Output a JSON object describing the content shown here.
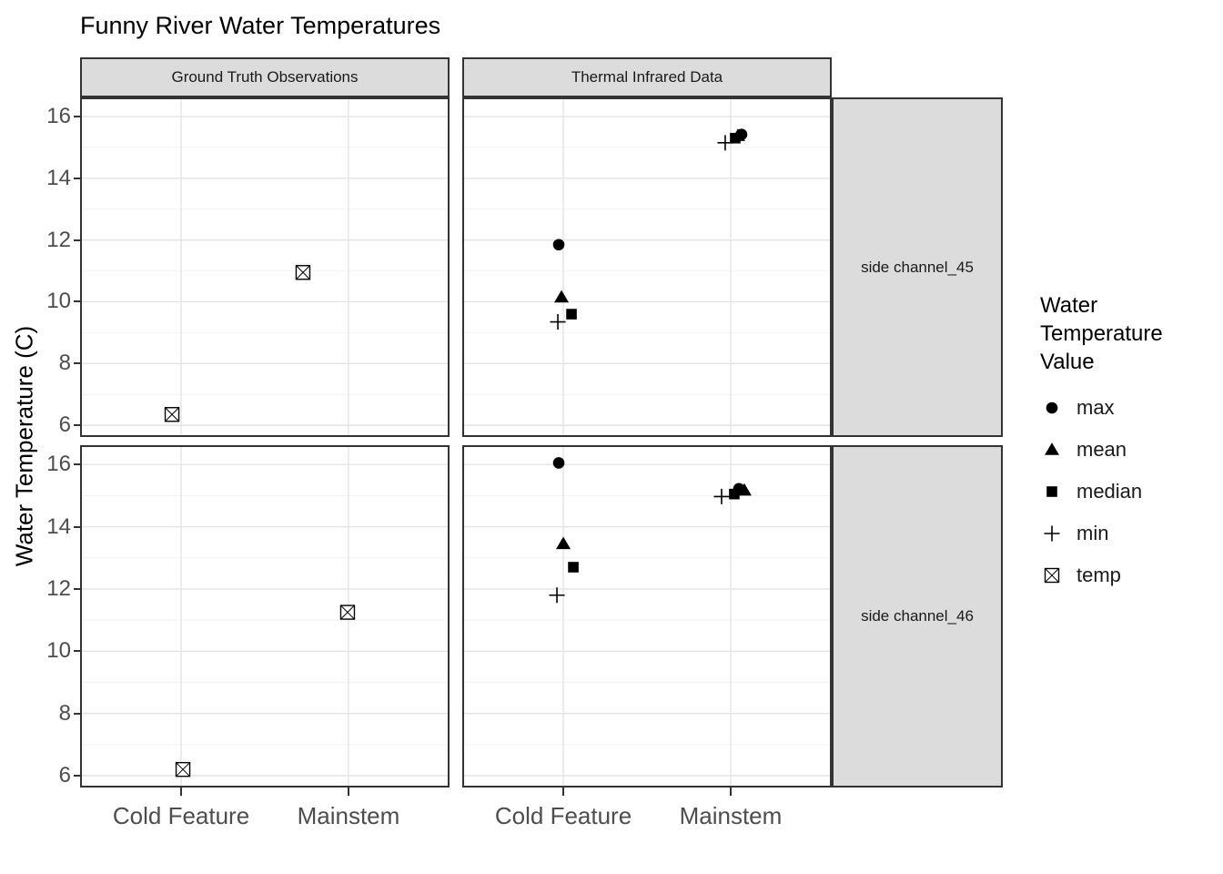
{
  "title": "Funny River Water Temperatures",
  "colors": {
    "marker": "#000000",
    "strip_fill": "#DCDCDC",
    "panel_border": "#333333",
    "grid_major": "#E4E4E4",
    "grid_minor": "#F2F2F2",
    "axis_text": "#4D4D4D",
    "title_text": "#000000"
  },
  "chart_data": {
    "type": "scatter",
    "title": "Funny River Water Temperatures",
    "xlabel": "",
    "ylabel": "Water Temperature (C)",
    "facet_cols": [
      "Ground Truth Observations",
      "Thermal Infrared Data"
    ],
    "facet_rows": [
      "side channel_45",
      "side channel_46"
    ],
    "x_categories": [
      "Cold Feature",
      "Mainstem"
    ],
    "yticks": [
      6,
      8,
      10,
      12,
      14,
      16
    ],
    "yticks_minor": [
      7,
      9,
      11,
      13,
      15
    ],
    "ylim": [
      5.62,
      16.62
    ],
    "grid": "major-and-minor, light grey on white",
    "legend": {
      "title": "Water Temperature Value",
      "title_lines": [
        "Water",
        "Temperature",
        "Value"
      ],
      "position": "right",
      "items": [
        {
          "label": "max",
          "marker": "filled-circle"
        },
        {
          "label": "mean",
          "marker": "filled-triangle"
        },
        {
          "label": "median",
          "marker": "filled-square"
        },
        {
          "label": "min",
          "marker": "plus"
        },
        {
          "label": "temp",
          "marker": "crossed-square"
        }
      ]
    },
    "points": [
      {
        "facet_col": 0,
        "facet_row": 0,
        "x": "Cold Feature",
        "stat": "temp",
        "y": 6.35,
        "dx": -10
      },
      {
        "facet_col": 0,
        "facet_row": 0,
        "x": "Mainstem",
        "stat": "temp",
        "y": 10.95,
        "dx": -50
      },
      {
        "facet_col": 1,
        "facet_row": 0,
        "x": "Cold Feature",
        "stat": "min",
        "y": 9.35,
        "dx": -6
      },
      {
        "facet_col": 1,
        "facet_row": 0,
        "x": "Cold Feature",
        "stat": "median",
        "y": 9.6,
        "dx": 9
      },
      {
        "facet_col": 1,
        "facet_row": 0,
        "x": "Cold Feature",
        "stat": "mean",
        "y": 10.15,
        "dx": -2
      },
      {
        "facet_col": 1,
        "facet_row": 0,
        "x": "Cold Feature",
        "stat": "max",
        "y": 11.85,
        "dx": -5
      },
      {
        "facet_col": 1,
        "facet_row": 0,
        "x": "Mainstem",
        "stat": "min",
        "y": 15.15,
        "dx": -6
      },
      {
        "facet_col": 1,
        "facet_row": 0,
        "x": "Mainstem",
        "stat": "median",
        "y": 15.3,
        "dx": 5
      },
      {
        "facet_col": 1,
        "facet_row": 0,
        "x": "Mainstem",
        "stat": "mean",
        "y": 15.38,
        "dx": 8
      },
      {
        "facet_col": 1,
        "facet_row": 0,
        "x": "Mainstem",
        "stat": "max",
        "y": 15.42,
        "dx": 12
      },
      {
        "facet_col": 0,
        "facet_row": 1,
        "x": "Cold Feature",
        "stat": "temp",
        "y": 6.2,
        "dx": 2
      },
      {
        "facet_col": 0,
        "facet_row": 1,
        "x": "Mainstem",
        "stat": "temp",
        "y": 11.25,
        "dx": -1
      },
      {
        "facet_col": 1,
        "facet_row": 1,
        "x": "Cold Feature",
        "stat": "min",
        "y": 11.8,
        "dx": -7
      },
      {
        "facet_col": 1,
        "facet_row": 1,
        "x": "Cold Feature",
        "stat": "median",
        "y": 12.7,
        "dx": 11
      },
      {
        "facet_col": 1,
        "facet_row": 1,
        "x": "Cold Feature",
        "stat": "mean",
        "y": 13.45,
        "dx": 0
      },
      {
        "facet_col": 1,
        "facet_row": 1,
        "x": "Cold Feature",
        "stat": "max",
        "y": 16.05,
        "dx": -5
      },
      {
        "facet_col": 1,
        "facet_row": 1,
        "x": "Mainstem",
        "stat": "min",
        "y": 14.97,
        "dx": -10
      },
      {
        "facet_col": 1,
        "facet_row": 1,
        "x": "Mainstem",
        "stat": "median",
        "y": 15.05,
        "dx": 4
      },
      {
        "facet_col": 1,
        "facet_row": 1,
        "x": "Mainstem",
        "stat": "mean",
        "y": 15.17,
        "dx": 15
      },
      {
        "facet_col": 1,
        "facet_row": 1,
        "x": "Mainstem",
        "stat": "max",
        "y": 15.22,
        "dx": 9
      }
    ],
    "marker_map": {
      "max": "filled-circle",
      "mean": "filled-triangle",
      "median": "filled-square",
      "min": "plus",
      "temp": "crossed-square"
    }
  }
}
